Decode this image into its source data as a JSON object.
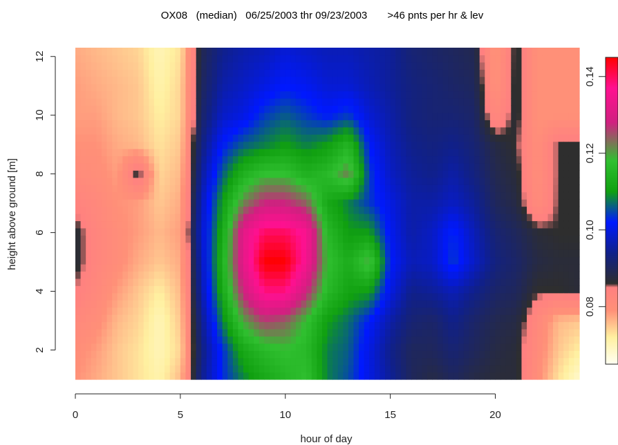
{
  "chart_data": {
    "type": "heatmap",
    "title": "OX08   (median)   06/25/2003 thr 09/23/2003       >46 pnts per hr & lev",
    "xlabel": "hour of day",
    "ylabel": "height above ground [m]",
    "xlim": [
      0,
      24
    ],
    "ylim": [
      1,
      12.3
    ],
    "x_ticks": [
      0,
      5,
      10,
      15,
      20
    ],
    "x_tick_labels": [
      "0",
      "5",
      "10",
      "15",
      "20"
    ],
    "y_ticks": [
      2,
      4,
      6,
      8,
      10,
      12
    ],
    "y_tick_labels": [
      "2",
      "4",
      "6",
      "8",
      "10",
      "12"
    ],
    "colorbar": {
      "min": 0.065,
      "max": 0.145,
      "ticks": [
        0.08,
        0.1,
        0.12,
        0.14
      ],
      "tick_labels": [
        "0.08",
        "0.10",
        "0.12",
        "0.14"
      ],
      "stops": [
        {
          "value": 0.065,
          "color": "#fffff2"
        },
        {
          "value": 0.072,
          "color": "#fff0a0"
        },
        {
          "value": 0.079,
          "color": "#ff9078"
        },
        {
          "value": 0.085,
          "color": "#ff8080"
        },
        {
          "value": 0.086,
          "color": "#2e2e2e"
        },
        {
          "value": 0.094,
          "color": "#10208a"
        },
        {
          "value": 0.102,
          "color": "#0018ff"
        },
        {
          "value": 0.11,
          "color": "#10a010"
        },
        {
          "value": 0.118,
          "color": "#30c030"
        },
        {
          "value": 0.128,
          "color": "#d02080"
        },
        {
          "value": 0.137,
          "color": "#ff1090"
        },
        {
          "value": 0.145,
          "color": "#ff0000"
        }
      ]
    },
    "hours": [
      0,
      1,
      2,
      3,
      4,
      5,
      6,
      7,
      8,
      9,
      10,
      11,
      12,
      13,
      14,
      15,
      16,
      17,
      18,
      19,
      20,
      21,
      22,
      23,
      24
    ],
    "heights": [
      1,
      2,
      3,
      4,
      5,
      6,
      7,
      8,
      9,
      10,
      11,
      12.3
    ],
    "values": [
      [
        0.079,
        0.077,
        0.075,
        0.073,
        0.071,
        0.076,
        0.094,
        0.103,
        0.108,
        0.112,
        0.115,
        0.118,
        0.108,
        0.105,
        0.1,
        0.095,
        0.09,
        0.088,
        0.09,
        0.088,
        0.087,
        0.087,
        0.08,
        0.073,
        0.068
      ],
      [
        0.08,
        0.078,
        0.075,
        0.073,
        0.07,
        0.074,
        0.093,
        0.103,
        0.112,
        0.116,
        0.118,
        0.116,
        0.108,
        0.106,
        0.1,
        0.094,
        0.09,
        0.09,
        0.092,
        0.09,
        0.088,
        0.087,
        0.081,
        0.075,
        0.072
      ],
      [
        0.082,
        0.08,
        0.076,
        0.074,
        0.07,
        0.075,
        0.094,
        0.108,
        0.12,
        0.126,
        0.124,
        0.118,
        0.11,
        0.107,
        0.102,
        0.096,
        0.092,
        0.091,
        0.094,
        0.091,
        0.089,
        0.088,
        0.082,
        0.076,
        0.075
      ],
      [
        0.085,
        0.082,
        0.078,
        0.075,
        0.072,
        0.076,
        0.096,
        0.112,
        0.128,
        0.138,
        0.138,
        0.128,
        0.116,
        0.111,
        0.11,
        0.1,
        0.094,
        0.095,
        0.097,
        0.094,
        0.091,
        0.09,
        0.086,
        0.086,
        0.087
      ],
      [
        0.087,
        0.083,
        0.08,
        0.077,
        0.075,
        0.077,
        0.097,
        0.114,
        0.132,
        0.145,
        0.145,
        0.135,
        0.118,
        0.113,
        0.12,
        0.102,
        0.097,
        0.098,
        0.104,
        0.098,
        0.093,
        0.091,
        0.088,
        0.087,
        0.087
      ],
      [
        0.087,
        0.083,
        0.08,
        0.078,
        0.076,
        0.078,
        0.098,
        0.112,
        0.132,
        0.14,
        0.14,
        0.136,
        0.116,
        0.11,
        0.11,
        0.101,
        0.096,
        0.098,
        0.103,
        0.097,
        0.092,
        0.09,
        0.087,
        0.086,
        0.086
      ],
      [
        0.084,
        0.082,
        0.079,
        0.078,
        0.075,
        0.077,
        0.097,
        0.11,
        0.122,
        0.128,
        0.128,
        0.124,
        0.112,
        0.108,
        0.104,
        0.1,
        0.096,
        0.096,
        0.098,
        0.095,
        0.09,
        0.088,
        0.081,
        0.086,
        0.086
      ],
      [
        0.081,
        0.08,
        0.078,
        0.087,
        0.074,
        0.076,
        0.095,
        0.106,
        0.114,
        0.118,
        0.118,
        0.114,
        0.116,
        0.122,
        0.104,
        0.098,
        0.095,
        0.094,
        0.096,
        0.093,
        0.089,
        0.087,
        0.08,
        0.086,
        0.086
      ],
      [
        0.079,
        0.079,
        0.077,
        0.076,
        0.073,
        0.075,
        0.093,
        0.102,
        0.106,
        0.108,
        0.11,
        0.108,
        0.11,
        0.115,
        0.102,
        0.097,
        0.094,
        0.093,
        0.094,
        0.092,
        0.088,
        0.086,
        0.08,
        0.086,
        0.086
      ],
      [
        0.078,
        0.078,
        0.076,
        0.075,
        0.072,
        0.074,
        0.091,
        0.098,
        0.1,
        0.104,
        0.106,
        0.104,
        0.102,
        0.104,
        0.099,
        0.096,
        0.093,
        0.092,
        0.092,
        0.091,
        0.082,
        0.087,
        0.079,
        0.079,
        0.079
      ],
      [
        0.078,
        0.077,
        0.076,
        0.075,
        0.071,
        0.074,
        0.09,
        0.096,
        0.098,
        0.1,
        0.102,
        0.101,
        0.099,
        0.099,
        0.097,
        0.095,
        0.093,
        0.092,
        0.091,
        0.09,
        0.079,
        0.087,
        0.079,
        0.079,
        0.079
      ],
      [
        0.077,
        0.076,
        0.075,
        0.074,
        0.07,
        0.073,
        0.089,
        0.094,
        0.096,
        0.097,
        0.099,
        0.098,
        0.097,
        0.097,
        0.096,
        0.095,
        0.092,
        0.091,
        0.09,
        0.089,
        0.078,
        0.087,
        0.079,
        0.079,
        0.079
      ]
    ]
  }
}
